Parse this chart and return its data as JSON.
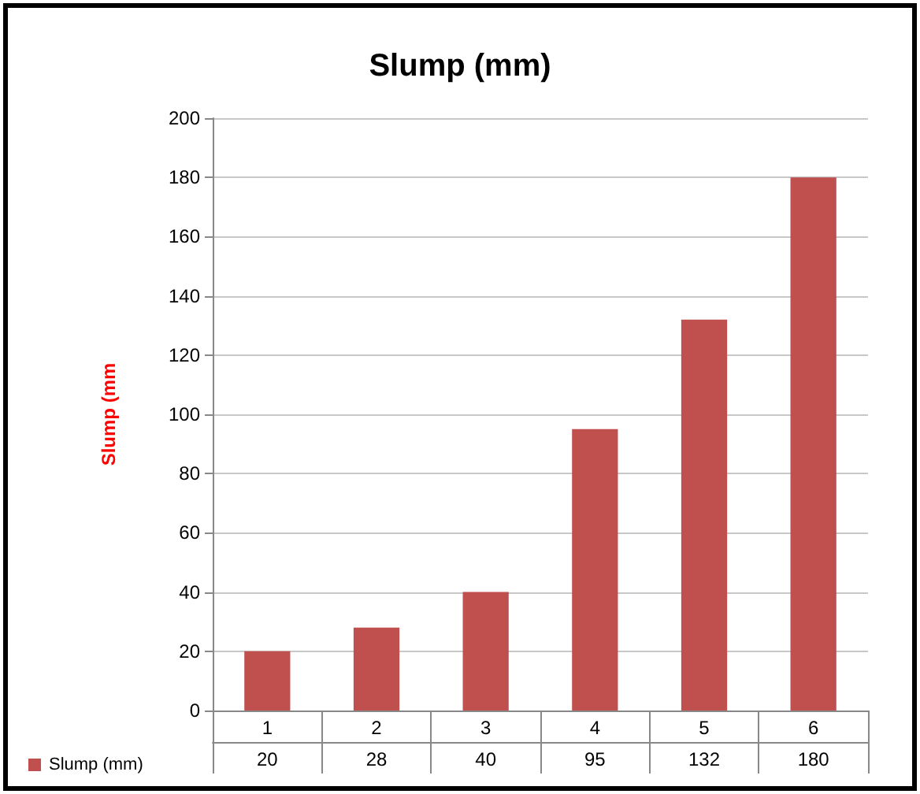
{
  "chart_data": {
    "type": "bar",
    "title": "Slump (mm)",
    "ylabel": "Slump (mm",
    "categories": [
      "1",
      "2",
      "3",
      "4",
      "5",
      "6"
    ],
    "series": [
      {
        "name": "Slump (mm)",
        "color": "#c0504d",
        "values": [
          20,
          28,
          40,
          95,
          132,
          180
        ]
      }
    ],
    "ylim": [
      0,
      200
    ],
    "yticks": [
      0,
      20,
      40,
      60,
      80,
      100,
      120,
      140,
      160,
      180,
      200
    ],
    "grid": "y",
    "legend": "bottom left",
    "data_labels": true
  }
}
